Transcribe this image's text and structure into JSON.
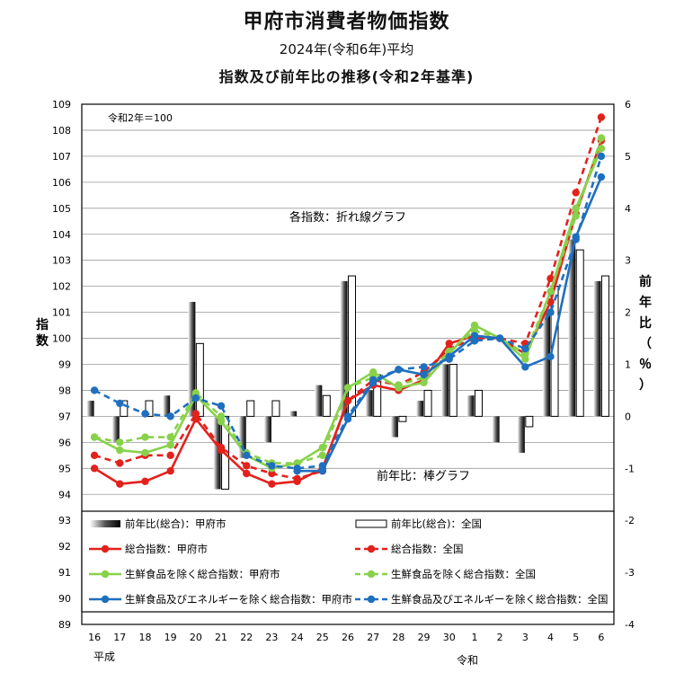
{
  "titles": {
    "main": "甲府市消費者物価指数",
    "sub": "2024年(令和6年)平均",
    "sub2": "指数及び前年比の推移(令和2年基準)"
  },
  "annotations": {
    "base": "令和2年＝100",
    "lines_note": "各指数：折れ線グラフ",
    "bars_note": "前年比：棒グラフ",
    "era_heisei": "平成",
    "era_reiwa": "令和"
  },
  "axes": {
    "left_label": "指数",
    "right_label": [
      "前",
      "年",
      "比",
      "（",
      "％",
      "）"
    ]
  },
  "chart_data": {
    "type": "line",
    "categories": [
      "16",
      "17",
      "18",
      "19",
      "20",
      "21",
      "22",
      "23",
      "24",
      "25",
      "26",
      "27",
      "28",
      "29",
      "30",
      "1",
      "2",
      "3",
      "4",
      "5",
      "6"
    ],
    "y_left": {
      "min": 89,
      "max": 109,
      "ticks": [
        89,
        90,
        91,
        92,
        93,
        94,
        95,
        96,
        97,
        98,
        99,
        100,
        101,
        102,
        103,
        104,
        105,
        106,
        107,
        108,
        109
      ]
    },
    "y_right": {
      "min": -4,
      "max": 6,
      "ticks": [
        -4,
        -3,
        -2,
        -1,
        0,
        1,
        2,
        3,
        4,
        5,
        6
      ]
    },
    "bars": [
      {
        "name": "前年比(総合)：甲府市",
        "style": "gradient",
        "values": [
          0.3,
          -0.5,
          0.0,
          0.4,
          2.2,
          -1.4,
          -0.8,
          -0.5,
          0.1,
          0.6,
          2.6,
          0.5,
          -0.4,
          0.3,
          1.0,
          0.4,
          -0.5,
          -0.7,
          2.0,
          3.4,
          2.6
        ]
      },
      {
        "name": "前年比(総合)：全国",
        "style": "white",
        "values": [
          0.0,
          0.3,
          0.3,
          0.0,
          1.4,
          -1.4,
          0.3,
          0.3,
          0.0,
          0.4,
          2.7,
          0.8,
          -0.1,
          0.5,
          1.0,
          0.5,
          0.0,
          -0.2,
          2.5,
          3.2,
          2.7
        ]
      }
    ],
    "series": [
      {
        "name": "総合指数：甲府市",
        "color": "#e3211c",
        "dashed": false,
        "values": [
          95.0,
          94.4,
          94.5,
          94.9,
          96.9,
          95.7,
          94.8,
          94.4,
          94.5,
          95.0,
          97.6,
          98.2,
          98.0,
          98.4,
          99.8,
          100.1,
          100.0,
          99.4,
          101.4,
          104.8,
          107.6
        ]
      },
      {
        "name": "総合指数：全国",
        "color": "#e3211c",
        "dashed": true,
        "values": [
          95.5,
          95.2,
          95.5,
          95.5,
          97.1,
          95.8,
          95.1,
          94.8,
          94.6,
          94.9,
          97.6,
          98.4,
          98.2,
          98.7,
          99.6,
          100.0,
          100.0,
          99.8,
          102.3,
          105.6,
          108.5
        ]
      },
      {
        "name": "生鮮食品を除く総合指数：甲府市",
        "color": "#88d14a",
        "dashed": false,
        "values": [
          96.2,
          95.7,
          95.6,
          95.9,
          97.8,
          96.8,
          95.5,
          95.0,
          95.2,
          95.8,
          98.1,
          98.7,
          98.1,
          98.3,
          99.4,
          100.5,
          100.0,
          99.2,
          101.8,
          105.0,
          107.3
        ]
      },
      {
        "name": "生鮮食品を除く総合指数：全国",
        "color": "#88d14a",
        "dashed": true,
        "values": [
          96.2,
          96.0,
          96.2,
          96.2,
          97.9,
          97.0,
          95.6,
          95.2,
          95.2,
          95.5,
          98.1,
          98.5,
          98.2,
          98.5,
          99.5,
          100.3,
          100.0,
          99.4,
          101.8,
          104.7,
          107.7
        ]
      },
      {
        "name": "生鮮食品及びエネルギーを除く総合指数：甲府市",
        "color": "#1f6fbf",
        "dashed": false,
        "values": [
          null,
          null,
          null,
          null,
          null,
          null,
          null,
          null,
          94.9,
          94.9,
          96.9,
          98.3,
          98.8,
          98.6,
          99.3,
          100.1,
          100.0,
          98.9,
          99.3,
          103.9,
          106.2
        ]
      },
      {
        "name": "生鮮食品及びエネルギーを除く総合指数：全国",
        "color": "#1f6fbf",
        "dashed": true,
        "values": [
          98.0,
          97.5,
          97.1,
          97.0,
          97.7,
          97.4,
          95.5,
          95.1,
          95.0,
          95.1,
          97.0,
          98.4,
          98.8,
          98.9,
          99.2,
          99.9,
          100.0,
          99.6,
          101.0,
          103.8,
          107.0
        ]
      }
    ],
    "legend": {
      "rows": [
        [
          "前年比(総合)：甲府市",
          "前年比(総合)：全国"
        ],
        [
          "総合指数：甲府市",
          "総合指数：全国"
        ],
        [
          "生鮮食品を除く総合指数：甲府市",
          "生鮮食品を除く総合指数：全国"
        ],
        [
          "生鮮食品及びエネルギーを除く総合指数：甲府市",
          "生鮮食品及びエネルギーを除く総合指数：全国"
        ]
      ],
      "placement": "bottom-inside"
    },
    "grid": true
  }
}
